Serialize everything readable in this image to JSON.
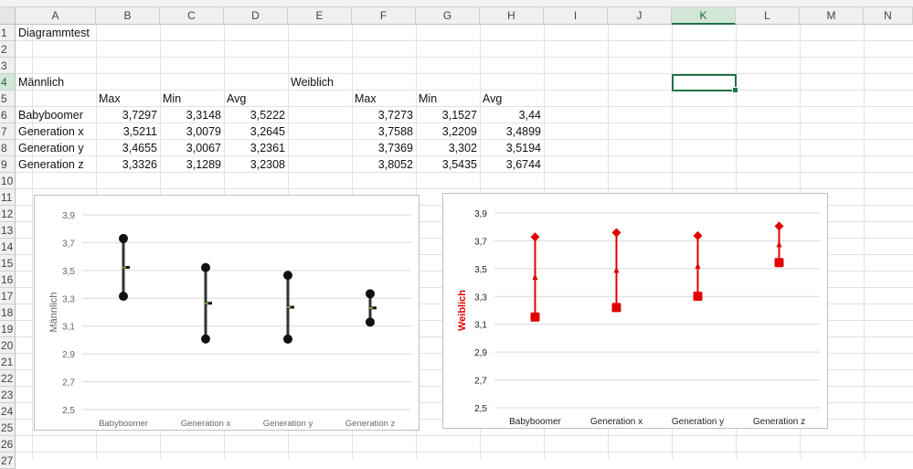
{
  "columns": [
    "A",
    "B",
    "C",
    "D",
    "E",
    "F",
    "G",
    "H",
    "I",
    "J",
    "K",
    "L",
    "M",
    "N"
  ],
  "rows": [
    "1",
    "2",
    "3",
    "4",
    "5",
    "6",
    "7",
    "8",
    "9",
    "10",
    "11",
    "12",
    "13",
    "14",
    "15",
    "16",
    "17",
    "18",
    "19",
    "20",
    "21",
    "22",
    "23",
    "24",
    "25",
    "26",
    "27"
  ],
  "selected_cell": {
    "column": "K",
    "row": "4"
  },
  "cells": {
    "a1": "Diagrammtest",
    "a4": "Männlich",
    "e4": "Weiblich",
    "b5": "Max",
    "c5": "Min",
    "d5": "Avg",
    "f5": "Max",
    "g5": "Min",
    "h5": "Avg",
    "male_rows": [
      {
        "label": "Babyboomer",
        "max": "3,7297",
        "min": "3,3148",
        "avg": "3,5222"
      },
      {
        "label": "Generation x",
        "max": "3,5211",
        "min": "3,0079",
        "avg": "3,2645"
      },
      {
        "label": "Generation y",
        "max": "3,4655",
        "min": "3,0067",
        "avg": "3,2361"
      },
      {
        "label": "Generation z",
        "max": "3,3326",
        "min": "3,1289",
        "avg": "3,2308"
      }
    ],
    "female_rows": [
      {
        "max": "3,7273",
        "min": "3,1527",
        "avg": "3,44"
      },
      {
        "max": "3,7588",
        "min": "3,2209",
        "avg": "3,4899"
      },
      {
        "max": "3,7369",
        "min": "3,302",
        "avg": "3,5194"
      },
      {
        "max": "3,8052",
        "min": "3,5435",
        "avg": "3,6744"
      }
    ]
  },
  "colors": {
    "male_series": "#111111",
    "male_avg": "#70ad47",
    "female_series": "#e00000",
    "grid": "#d9d9d9",
    "excel_green": "#217346"
  },
  "chart_data": [
    {
      "type": "line",
      "title": "",
      "xlabel": "",
      "ylabel": "Männlich",
      "categories": [
        "Babyboomer",
        "Generation x",
        "Generation y",
        "Generation z"
      ],
      "ylim": [
        2.5,
        3.9
      ],
      "yticks": [
        "2,5",
        "2,7",
        "2,9",
        "3,1",
        "3,3",
        "3,5",
        "3,7",
        "3,9"
      ],
      "series": [
        {
          "values": [
            3.7297,
            3.5211,
            3.4655,
            3.3326
          ],
          "marker": "circle"
        },
        {
          "values": [
            3.3148,
            3.0079,
            3.0067,
            3.1289
          ],
          "marker": "circle"
        },
        {
          "values": [
            3.5222,
            3.2645,
            3.2361,
            3.2308
          ],
          "marker": "dash"
        }
      ],
      "grid": true,
      "legend": "none"
    },
    {
      "type": "line",
      "title": "",
      "xlabel": "",
      "ylabel": "Weiblich",
      "categories": [
        "Babyboomer",
        "Generation x",
        "Generation y",
        "Generation z"
      ],
      "ylim": [
        2.5,
        3.9
      ],
      "yticks": [
        "2,5",
        "2,7",
        "2,9",
        "3,1",
        "3,3",
        "3,5",
        "3,7",
        "3,9"
      ],
      "series": [
        {
          "values": [
            3.7273,
            3.7588,
            3.7369,
            3.8052
          ],
          "marker": "diamond"
        },
        {
          "values": [
            3.1527,
            3.2209,
            3.302,
            3.5435
          ],
          "marker": "square"
        },
        {
          "values": [
            3.44,
            3.4899,
            3.5194,
            3.6744
          ],
          "marker": "triangle"
        }
      ],
      "grid": true,
      "legend": "none"
    }
  ]
}
